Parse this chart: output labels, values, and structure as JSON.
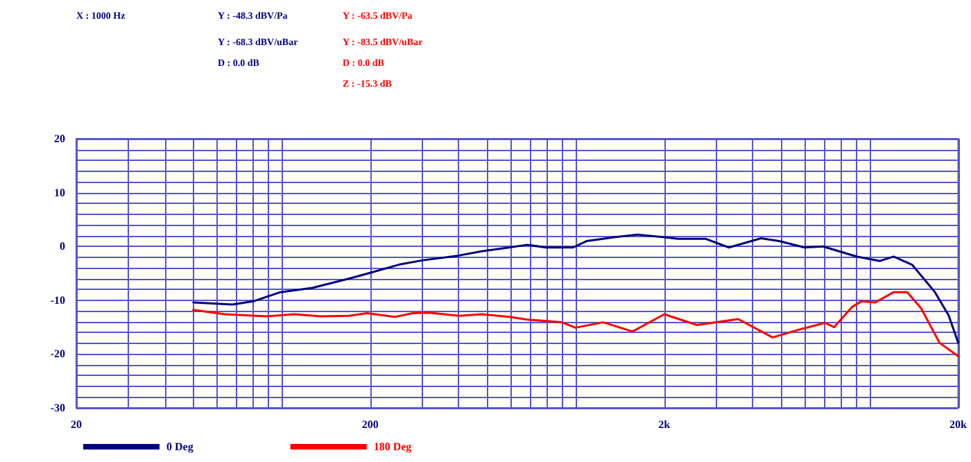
{
  "chart_data": {
    "type": "line",
    "annotations": [
      "X : 1000 Hz",
      "Y : -48.3 dBV/Pa",
      "Y : -68.3 dBV/uBar",
      "D : 0.0 dB",
      "Y : -63.5 dBV/Pa",
      "Y : -83.5 dBV/uBar",
      "D : 0.0 dB",
      "Z : -15.3 dB"
    ],
    "log": "x",
    "grid": true,
    "legend": "bottom",
    "marker": "none",
    "line_style": "solid",
    "xlim": [
      20,
      20000
    ],
    "ylim": [
      -30,
      20
    ],
    "xticks": [
      20,
      {
        "value": 30,
        "label": null
      },
      {
        "value": 40,
        "label": null
      },
      {
        "value": 50,
        "label": null
      },
      {
        "value": 60,
        "label": null
      },
      {
        "value": 70,
        "label": null
      },
      {
        "value": 80,
        "label": null
      },
      {
        "value": 90,
        "label": null
      },
      {
        "value": 100,
        "label": null
      },
      200,
      {
        "value": 300,
        "label": null
      },
      {
        "value": 400,
        "label": null
      },
      {
        "value": 500,
        "label": null
      },
      {
        "value": 600,
        "label": null
      },
      {
        "value": 700,
        "label": null
      },
      {
        "value": 800,
        "label": null
      },
      {
        "value": 900,
        "label": null
      },
      {
        "value": 1000,
        "label": null
      },
      {
        "value": 2000,
        "label": "2k"
      },
      {
        "value": 3000,
        "label": null
      },
      {
        "value": 4000,
        "label": null
      },
      {
        "value": 5000,
        "label": null
      },
      {
        "value": 6000,
        "label": null
      },
      {
        "value": 7000,
        "label": null
      },
      {
        "value": 8000,
        "label": null
      },
      {
        "value": 9000,
        "label": null
      },
      {
        "value": 10000,
        "label": null
      },
      {
        "value": 20000,
        "label": "20k"
      }
    ],
    "yticks": [
      -30,
      {
        "value": -28,
        "label": null
      },
      {
        "value": -26,
        "label": null
      },
      {
        "value": -24,
        "label": null
      },
      {
        "value": -22,
        "label": null
      },
      -20,
      {
        "value": -18,
        "label": null
      },
      {
        "value": -16,
        "label": null
      },
      {
        "value": -14,
        "label": null
      },
      {
        "value": -12,
        "label": null
      },
      -10,
      {
        "value": -8,
        "label": null
      },
      {
        "value": -6,
        "label": null
      },
      {
        "value": -4,
        "label": null
      },
      {
        "value": -2,
        "label": null
      },
      0,
      {
        "value": 2,
        "label": null
      },
      {
        "value": 4,
        "label": null
      },
      {
        "value": 6,
        "label": null
      },
      {
        "value": 8,
        "label": null
      },
      10,
      {
        "value": 12,
        "label": null
      },
      {
        "value": 14,
        "label": null
      },
      {
        "value": 16,
        "label": null
      },
      {
        "value": 18,
        "label": null
      },
      20
    ],
    "series": [
      {
        "name": "0 Deg",
        "color": "#000080",
        "x": [
          50,
          68,
          80,
          99,
          127,
          169,
          200,
          250,
          300,
          400,
          478,
          593,
          684,
          791,
          980,
          1090,
          1350,
          1620,
          2000,
          2230,
          2770,
          3320,
          4270,
          4920,
          6000,
          6930,
          9060,
          10840,
          12060,
          13930,
          16670,
          18550,
          20000
        ],
        "values": [
          -10.4,
          -10.8,
          -10.2,
          -8.5,
          -7.7,
          -6.0,
          -4.9,
          -3.4,
          -2.6,
          -1.7,
          -0.9,
          -0.2,
          0.3,
          -0.2,
          -0.2,
          1.0,
          1.7,
          2.2,
          1.7,
          1.4,
          1.4,
          -0.2,
          1.5,
          1.0,
          -0.2,
          0.0,
          -1.9,
          -2.7,
          -1.9,
          -3.4,
          -8.5,
          -12.8,
          -17.9
        ]
      },
      {
        "name": "180 Deg",
        "color": "#ff0000",
        "x": [
          50,
          64,
          89,
          110,
          136,
          169,
          195,
          242,
          279,
          317,
          400,
          478,
          593,
          684,
          896,
          998,
          1240,
          1560,
          2000,
          2580,
          3570,
          4670,
          5890,
          7050,
          7570,
          8730,
          9380,
          10450,
          12060,
          13420,
          14960,
          17270,
          20000
        ],
        "values": [
          -11.8,
          -12.6,
          -13.0,
          -12.6,
          -13.0,
          -12.9,
          -12.4,
          -13.1,
          -12.4,
          -12.3,
          -12.9,
          -12.6,
          -13.1,
          -13.6,
          -14.1,
          -15.1,
          -14.1,
          -15.8,
          -12.6,
          -14.6,
          -13.5,
          -16.9,
          -15.3,
          -14.2,
          -15.0,
          -11.2,
          -10.2,
          -10.4,
          -8.5,
          -8.5,
          -11.5,
          -17.9,
          -20.4
        ]
      }
    ]
  }
}
